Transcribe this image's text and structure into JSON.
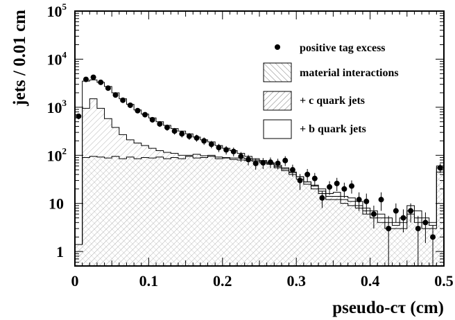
{
  "chart_data": {
    "type": "histogram",
    "xlabel": "pseudo-cτ (cm)",
    "ylabel": "jets / 0.01 cm",
    "xlim": [
      0,
      0.5
    ],
    "ylim": [
      0.5,
      100000
    ],
    "yscale": "log",
    "x_ticks": [
      "0",
      "0.1",
      "0.2",
      "0.3",
      "0.4",
      "0.5"
    ],
    "y_ticks": [
      {
        "base": "1",
        "exp": ""
      },
      {
        "base": "10",
        "exp": ""
      },
      {
        "base": "10",
        "exp": "2"
      },
      {
        "base": "10",
        "exp": "3"
      },
      {
        "base": "10",
        "exp": "4"
      },
      {
        "base": "10",
        "exp": "5"
      }
    ],
    "legend_position": "top-right",
    "legend": [
      "positive tag excess",
      "material interactions",
      "+ c quark jets",
      "+ b quark jets"
    ],
    "bin_edges_start": 0,
    "bin_width": 0.01,
    "series": [
      {
        "name": "material interactions",
        "values": [
          1.4,
          90,
          95,
          92,
          88,
          95,
          85,
          92,
          85,
          90,
          88,
          92,
          85,
          90,
          85,
          95,
          88,
          90,
          95,
          85,
          88,
          82,
          80,
          78,
          75,
          70,
          65,
          55,
          48,
          40,
          32,
          25,
          20,
          16,
          12,
          12,
          10,
          9,
          8,
          6,
          5,
          4,
          3,
          3,
          3,
          6,
          4,
          3,
          3,
          45
        ]
      },
      {
        "name": "+ c quark jets",
        "values": [
          1.4,
          950,
          1500,
          950,
          580,
          380,
          270,
          210,
          180,
          160,
          140,
          125,
          115,
          110,
          100,
          100,
          105,
          98,
          100,
          92,
          90,
          88,
          88,
          85,
          80,
          78,
          70,
          62,
          55,
          44,
          36,
          28,
          23,
          18,
          14,
          14,
          12,
          11,
          9,
          7,
          6,
          5,
          4,
          3.5,
          4,
          7,
          5,
          4,
          3.5,
          55
        ]
      },
      {
        "name": "+ b quark jets",
        "values": [
          1.4,
          3500,
          3700,
          3300,
          2700,
          2000,
          1500,
          1150,
          880,
          720,
          600,
          500,
          420,
          360,
          320,
          280,
          240,
          210,
          190,
          160,
          140,
          125,
          110,
          95,
          85,
          75,
          68,
          58,
          52,
          45,
          36,
          28,
          24,
          20,
          16,
          17,
          14,
          13,
          11,
          8,
          7,
          6,
          5,
          4,
          5,
          9,
          7,
          5,
          4,
          60
        ]
      }
    ],
    "points": {
      "name": "positive tag excess",
      "x": [
        0.005,
        0.015,
        0.025,
        0.035,
        0.045,
        0.055,
        0.065,
        0.075,
        0.085,
        0.095,
        0.105,
        0.115,
        0.125,
        0.135,
        0.145,
        0.155,
        0.165,
        0.175,
        0.185,
        0.195,
        0.205,
        0.215,
        0.225,
        0.235,
        0.245,
        0.255,
        0.265,
        0.275,
        0.285,
        0.295,
        0.305,
        0.315,
        0.325,
        0.335,
        0.345,
        0.355,
        0.365,
        0.375,
        0.385,
        0.395,
        0.405,
        0.415,
        0.425,
        0.435,
        0.445,
        0.455,
        0.465,
        0.475,
        0.485,
        0.495
      ],
      "y": [
        650,
        3800,
        4200,
        3300,
        2500,
        1800,
        1400,
        1100,
        850,
        700,
        550,
        450,
        380,
        320,
        280,
        250,
        230,
        200,
        170,
        145,
        130,
        120,
        95,
        82,
        68,
        70,
        72,
        68,
        78,
        50,
        30,
        40,
        33,
        13,
        22,
        26,
        20,
        23,
        12,
        11,
        6,
        12,
        3,
        7,
        5,
        7,
        3,
        4,
        2,
        55
      ],
      "yerr": [
        90,
        200,
        210,
        180,
        150,
        130,
        110,
        100,
        90,
        80,
        70,
        60,
        55,
        50,
        45,
        40,
        38,
        35,
        30,
        28,
        26,
        25,
        22,
        20,
        18,
        18,
        18,
        17,
        18,
        14,
        11,
        12,
        10,
        5,
        7,
        8,
        7,
        7,
        5,
        5,
        3,
        5,
        2.5,
        3,
        2.5,
        3,
        2.5,
        2.5,
        1.5,
        12
      ]
    }
  }
}
